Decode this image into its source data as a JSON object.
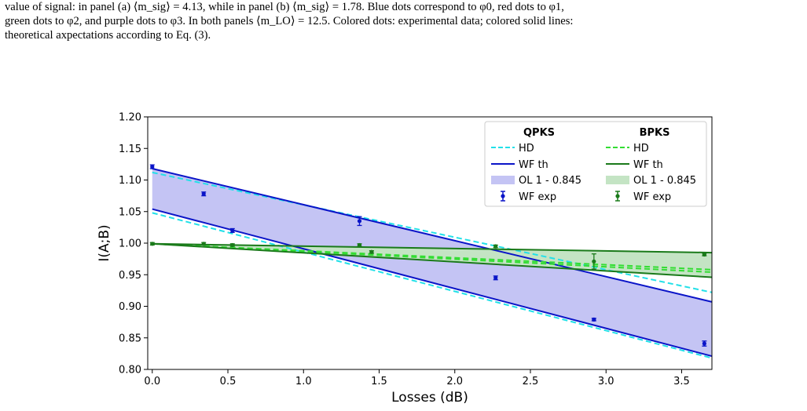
{
  "caption": {
    "line1": "value of signal: in panel (a) ⟨m_sig⟩ = 4.13, while in panel (b) ⟨m_sig⟩ = 1.78. Blue dots correspond to φ0, red dots to φ1,",
    "line2": "green dots to φ2, and purple dots to φ3. In both panels ⟨m_LO⟩ = 12.5. Colored dots: experimental data; colored solid lines:",
    "line3": "theoretical axpectations according to Eq. (3)."
  },
  "colors": {
    "qpks_hd": "#22e0e8",
    "qpks_wf": "#0a14c8",
    "qpks_fill": "#c4c4f4",
    "bpks_hd": "#33dd33",
    "bpks_wf": "#1a7a1a",
    "bpks_fill": "#c4e4c4"
  },
  "chart_data": {
    "type": "line",
    "xlabel": "Losses (dB)",
    "ylabel": "I(A;B)",
    "xlim": [
      -0.03,
      3.7
    ],
    "ylim": [
      0.8,
      1.2
    ],
    "xticks": [
      "0.0",
      "0.5",
      "1.0",
      "1.5",
      "2.0",
      "2.5",
      "3.0",
      "3.5"
    ],
    "xtick_values": [
      0.0,
      0.5,
      1.0,
      1.5,
      2.0,
      2.5,
      3.0,
      3.5
    ],
    "yticks": [
      "0.80",
      "0.85",
      "0.90",
      "0.95",
      "1.00",
      "1.05",
      "1.10",
      "1.15",
      "1.20"
    ],
    "ytick_values": [
      0.8,
      0.85,
      0.9,
      0.95,
      1.0,
      1.05,
      1.1,
      1.15,
      1.2
    ],
    "legend_placement": "top-right",
    "legend": {
      "qpks_title": "QPKS",
      "bpks_title": "BPKS",
      "hd": "HD",
      "wf_th": "WF th",
      "ol": "OL 1 - 0.845",
      "wf_exp": "WF exp"
    },
    "series": [
      {
        "group": "QPKS",
        "kind": "HD",
        "x": [
          0.0,
          3.7
        ],
        "y": [
          1.112,
          0.922
        ]
      },
      {
        "group": "QPKS",
        "kind": "HD",
        "x": [
          0.0,
          3.7
        ],
        "y": [
          1.048,
          0.818
        ]
      },
      {
        "group": "QPKS",
        "kind": "WF th",
        "x": [
          0.0,
          3.7
        ],
        "y": [
          1.118,
          0.907
        ]
      },
      {
        "group": "QPKS",
        "kind": "WF th",
        "x": [
          0.0,
          3.7
        ],
        "y": [
          1.054,
          0.821
        ]
      },
      {
        "group": "BPKS",
        "kind": "HD",
        "x": [
          0.0,
          3.7
        ],
        "y": [
          0.999,
          0.954
        ]
      },
      {
        "group": "BPKS",
        "kind": "HD",
        "x": [
          0.0,
          3.7
        ],
        "y": [
          0.999,
          0.958
        ]
      },
      {
        "group": "BPKS",
        "kind": "WF th",
        "x": [
          0.0,
          3.7
        ],
        "y": [
          0.999,
          0.985
        ]
      },
      {
        "group": "BPKS",
        "kind": "WF th",
        "x": [
          0.0,
          3.7
        ],
        "y": [
          0.999,
          0.946
        ]
      }
    ],
    "qpks_exp": {
      "x": [
        0.0,
        0.34,
        0.53,
        1.37,
        2.27,
        2.92,
        3.65
      ],
      "y": [
        1.121,
        1.078,
        1.02,
        1.035,
        0.945,
        0.879,
        0.841
      ],
      "err": [
        0.003,
        0.003,
        0.003,
        0.007,
        0.003,
        0.002,
        0.004
      ]
    },
    "bpks_exp": {
      "x": [
        0.0,
        0.34,
        0.53,
        1.37,
        1.45,
        2.27,
        2.92,
        3.65
      ],
      "y": [
        0.999,
        0.999,
        0.997,
        0.997,
        0.986,
        0.995,
        0.971,
        0.982
      ],
      "err": [
        0.002,
        0.002,
        0.002,
        0.002,
        0.002,
        0.002,
        0.012,
        0.002
      ]
    }
  }
}
